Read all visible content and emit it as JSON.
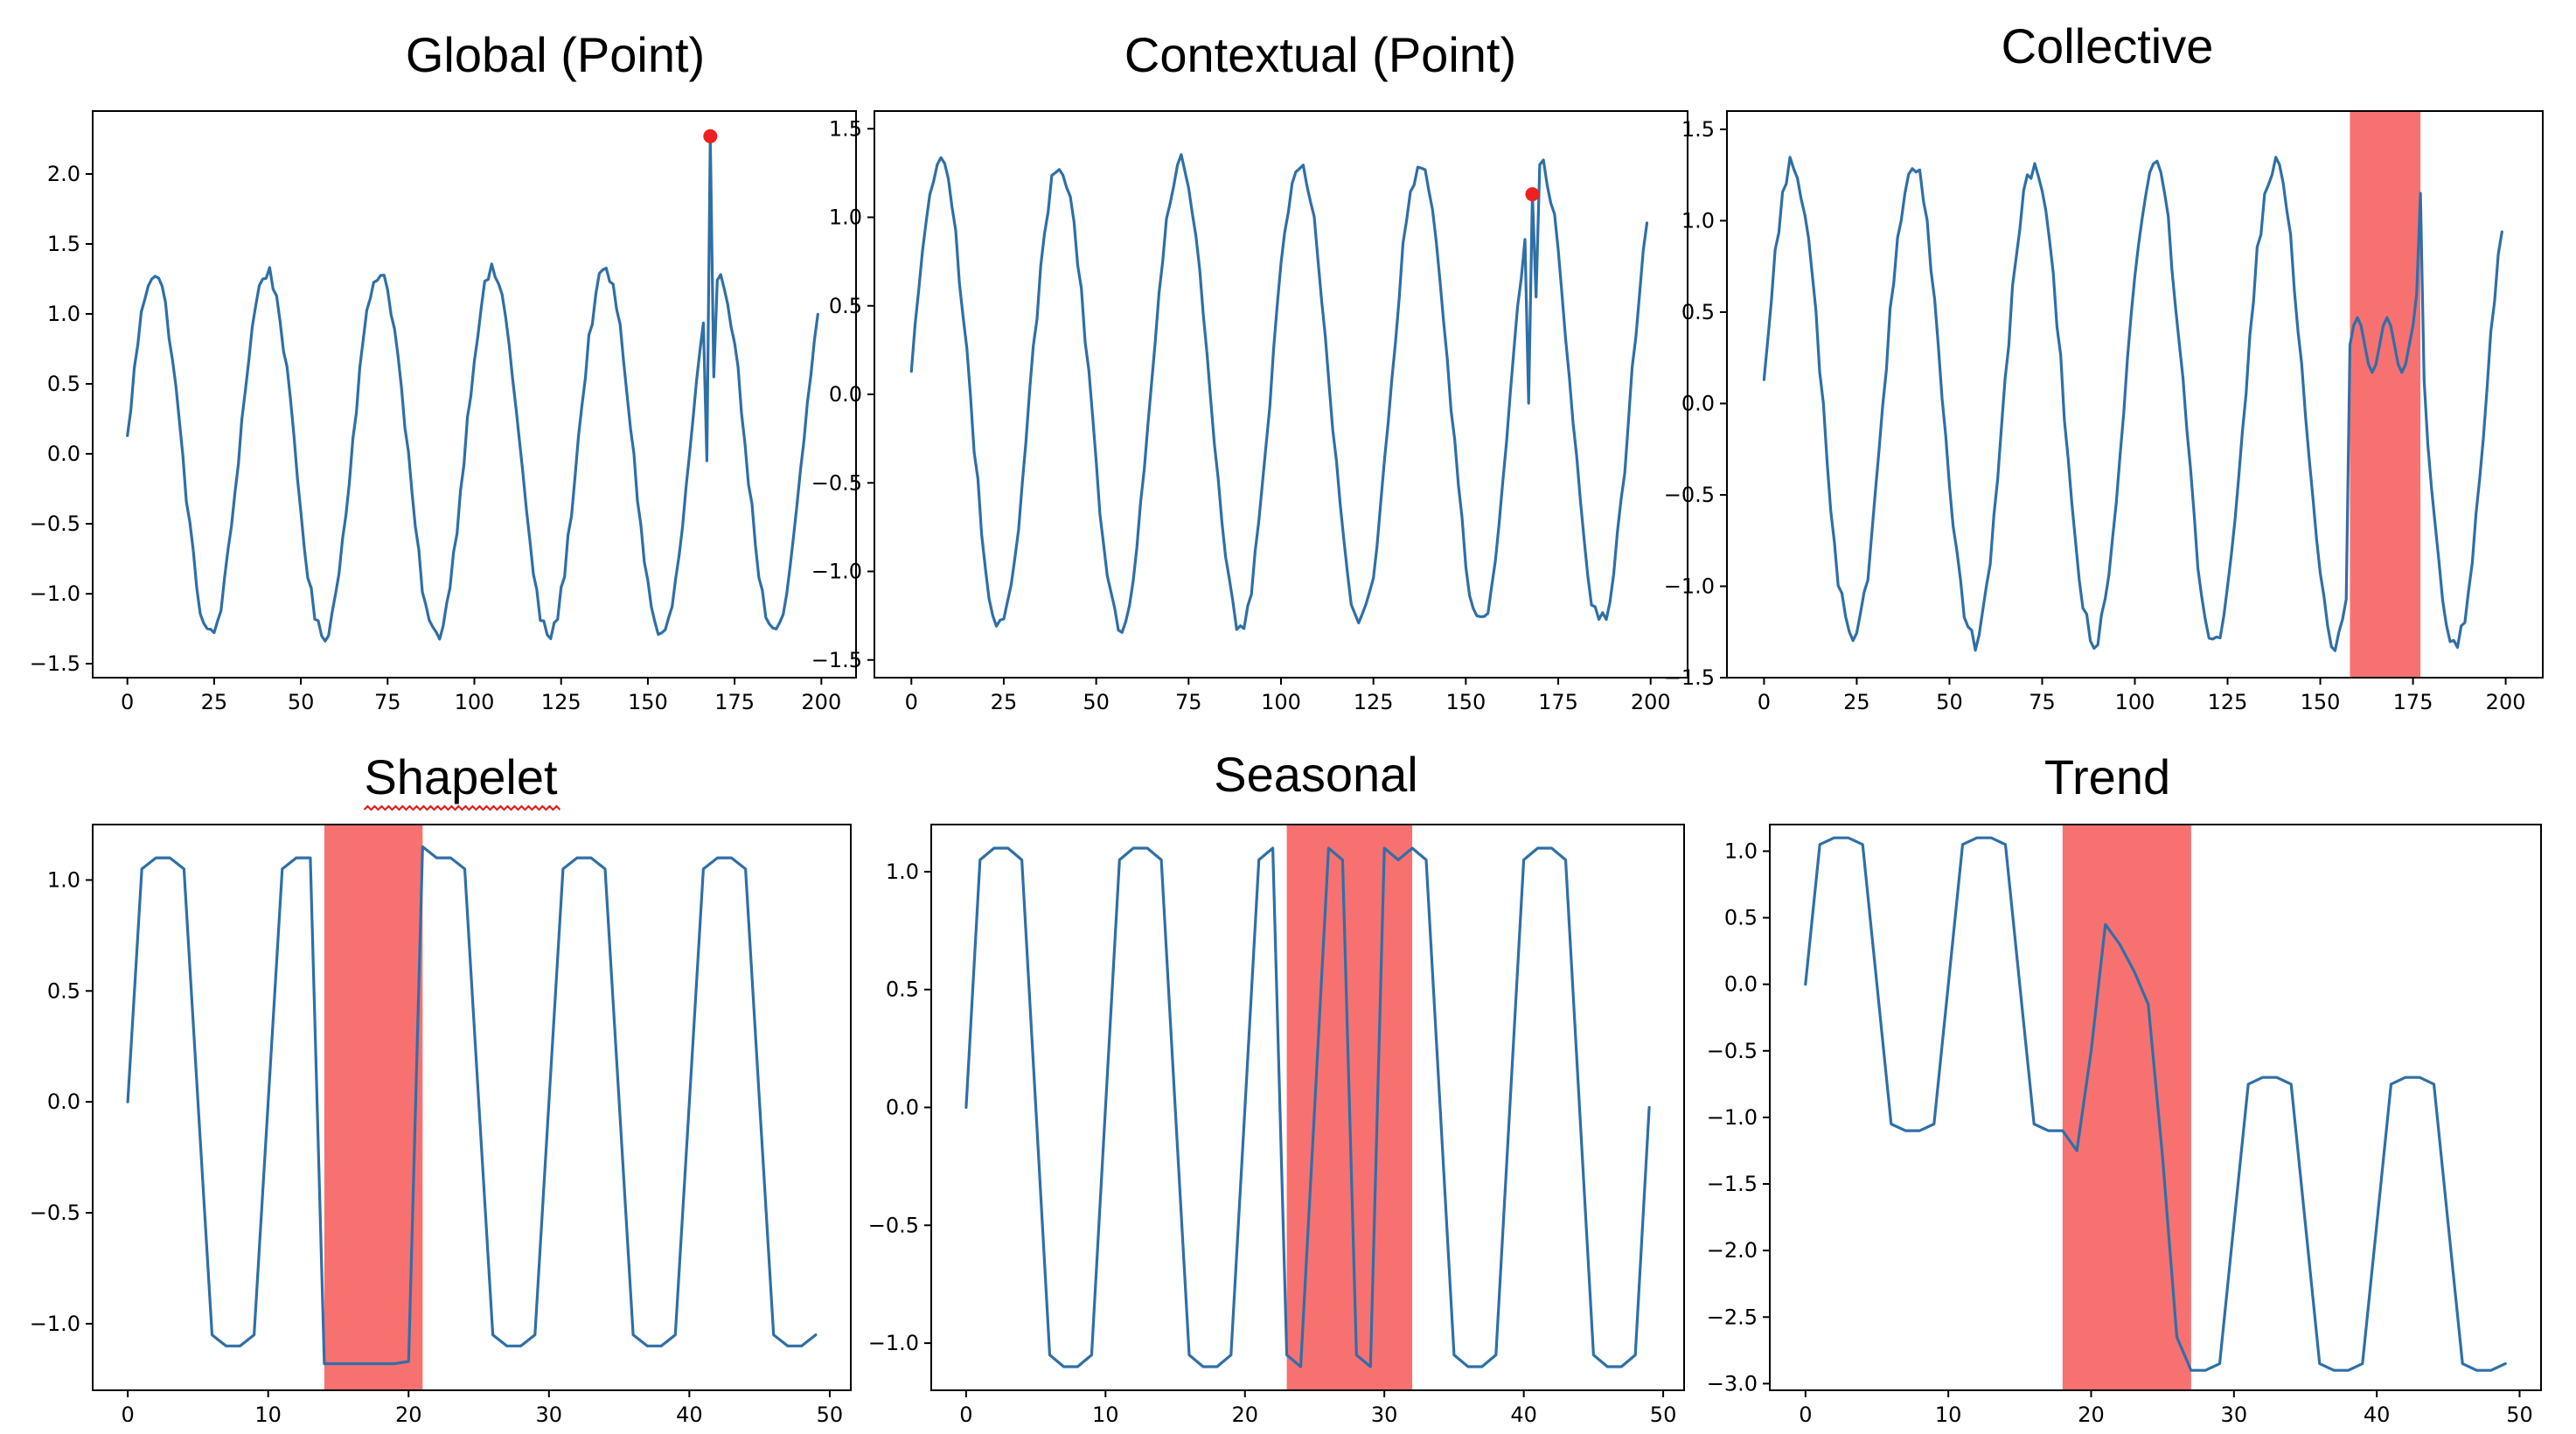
{
  "colors": {
    "line": "#2f6fa7",
    "anomaly_marker": "#ee2020",
    "anomaly_region": "#f87171"
  },
  "chart_data": [
    {
      "type": "line",
      "title": "Global (Point)",
      "xlim": [
        -10,
        210
      ],
      "ylim": [
        -1.6,
        2.45
      ],
      "xticks": [
        0,
        25,
        50,
        75,
        100,
        125,
        150,
        175,
        200
      ],
      "xtick_labels": [
        "0",
        "25",
        "50",
        "75",
        "100",
        "125",
        "150",
        "175",
        "200"
      ],
      "yticks": [
        -1.5,
        -1.0,
        -0.5,
        0.0,
        0.5,
        1.0,
        1.5,
        2.0
      ],
      "ytick_labels": [
        "−1.5",
        "−1.0",
        "−0.5",
        "0.0",
        "0.5",
        "1.0",
        "1.5",
        "2.0"
      ],
      "series": [
        {
          "generator": "sine_noisy",
          "n": 200,
          "period": 32.5,
          "amp": 1.3,
          "phase_offset": 0.08
        }
      ],
      "anomaly_points": [
        {
          "x": 168,
          "y": 2.27
        }
      ],
      "line_overrides": [
        {
          "x": 167,
          "y": -0.05
        },
        {
          "x": 168,
          "y": 2.27
        },
        {
          "x": 169,
          "y": 0.55
        }
      ],
      "anomaly_regions": []
    },
    {
      "type": "line",
      "title": "Contextual (Point)",
      "xlim": [
        -10,
        210
      ],
      "ylim": [
        -1.6,
        1.6
      ],
      "xticks": [
        0,
        25,
        50,
        75,
        100,
        125,
        150,
        175,
        200
      ],
      "xtick_labels": [
        "0",
        "25",
        "50",
        "75",
        "100",
        "125",
        "150",
        "175",
        "200"
      ],
      "yticks": [
        -1.5,
        -1.0,
        -0.5,
        0.0,
        0.5,
        1.0,
        1.5
      ],
      "ytick_labels": [
        "−1.5",
        "−1.0",
        "−0.5",
        "0.0",
        "0.5",
        "1.0",
        "1.5"
      ],
      "series": [
        {
          "generator": "sine_noisy",
          "n": 200,
          "period": 32.5,
          "amp": 1.3,
          "phase_offset": 0.08
        }
      ],
      "anomaly_points": [
        {
          "x": 168,
          "y": 1.13
        }
      ],
      "line_overrides": [
        {
          "x": 167,
          "y": -0.05
        },
        {
          "x": 168,
          "y": 1.13
        },
        {
          "x": 169,
          "y": 0.55
        }
      ],
      "anomaly_regions": []
    },
    {
      "type": "line",
      "title": "Collective",
      "xlim": [
        -10,
        210
      ],
      "ylim": [
        -1.5,
        1.6
      ],
      "xticks": [
        0,
        25,
        50,
        75,
        100,
        125,
        150,
        175,
        200
      ],
      "xtick_labels": [
        "0",
        "25",
        "50",
        "75",
        "100",
        "125",
        "150",
        "175",
        "200"
      ],
      "yticks": [
        -1.5,
        -1.0,
        -0.5,
        0.0,
        0.5,
        1.0,
        1.5
      ],
      "ytick_labels": [
        "−1.5",
        "−1.0",
        "−0.5",
        "0.0",
        "0.5",
        "1.0",
        "1.5"
      ],
      "series": [
        {
          "generator": "sine_noisy",
          "n": 200,
          "period": 32.5,
          "amp": 1.3,
          "phase_offset": 0.08,
          "replace_range": [
            158,
            176
          ],
          "replace_amp": 0.15,
          "replace_mid": 0.32,
          "replace_period": 8
        }
      ],
      "anomaly_points": [],
      "line_overrides": [
        {
          "x": 176,
          "y": 0.6
        },
        {
          "x": 177,
          "y": 1.15
        }
      ],
      "anomaly_regions": [
        [
          158,
          177
        ]
      ]
    },
    {
      "type": "line",
      "title": "Shapelet",
      "xlim": [
        -2.5,
        51.5
      ],
      "ylim": [
        -1.3,
        1.25
      ],
      "xticks": [
        0,
        10,
        20,
        30,
        40,
        50
      ],
      "xtick_labels": [
        "0",
        "10",
        "20",
        "30",
        "40",
        "50"
      ],
      "yticks": [
        -1.0,
        -0.5,
        0.0,
        0.5,
        1.0
      ],
      "ytick_labels": [
        "−1.0",
        "−0.5",
        "0.0",
        "0.5",
        "1.0"
      ],
      "series": [
        {
          "x": [
            0,
            1,
            2,
            3,
            4,
            5,
            6,
            7,
            8,
            9,
            10,
            11,
            12,
            13,
            14,
            15,
            16,
            17,
            18,
            19,
            20,
            21,
            22,
            23,
            24,
            25,
            26,
            27,
            28,
            29,
            30,
            31,
            32,
            33,
            34,
            35,
            36,
            37,
            38,
            39,
            40,
            41,
            42,
            43,
            44,
            45,
            46,
            47,
            48,
            49
          ],
          "y": [
            0,
            1.05,
            1.1,
            1.1,
            1.05,
            0,
            -1.05,
            -1.1,
            -1.1,
            -1.05,
            0,
            1.05,
            1.1,
            1.1,
            -1.18,
            -1.18,
            -1.18,
            -1.18,
            -1.18,
            -1.18,
            -1.17,
            1.15,
            1.1,
            1.1,
            1.05,
            0,
            -1.05,
            -1.1,
            -1.1,
            -1.05,
            0,
            1.05,
            1.1,
            1.1,
            1.05,
            0,
            -1.05,
            -1.1,
            -1.1,
            -1.05,
            0,
            1.05,
            1.1,
            1.1,
            1.05,
            0,
            -1.05,
            -1.1,
            -1.1,
            -1.05
          ]
        }
      ],
      "anomaly_points": [],
      "anomaly_regions": [
        [
          14,
          21
        ]
      ],
      "title_spell_mark": true
    },
    {
      "type": "line",
      "title": "Seasonal",
      "xlim": [
        -2.5,
        51.5
      ],
      "ylim": [
        -1.2,
        1.2
      ],
      "xticks": [
        0,
        10,
        20,
        30,
        40,
        50
      ],
      "xtick_labels": [
        "0",
        "10",
        "20",
        "30",
        "40",
        "50"
      ],
      "yticks": [
        -1.0,
        -0.5,
        0.0,
        0.5,
        1.0
      ],
      "ytick_labels": [
        "−1.0",
        "−0.5",
        "0.0",
        "0.5",
        "1.0"
      ],
      "series": [
        {
          "x": [
            0,
            1,
            2,
            3,
            4,
            5,
            6,
            7,
            8,
            9,
            10,
            11,
            12,
            13,
            14,
            15,
            16,
            17,
            18,
            19,
            20,
            21,
            22,
            23,
            24,
            25,
            26,
            27,
            28,
            29,
            30,
            31,
            32,
            33,
            34,
            35,
            36,
            37,
            38,
            39,
            40,
            41,
            42,
            43,
            44,
            45,
            46,
            47,
            48,
            49
          ],
          "y": [
            0,
            1.05,
            1.1,
            1.1,
            1.05,
            0,
            -1.05,
            -1.1,
            -1.1,
            -1.05,
            0,
            1.05,
            1.1,
            1.1,
            1.05,
            0,
            -1.05,
            -1.1,
            -1.1,
            -1.05,
            0,
            1.05,
            1.1,
            -1.05,
            -1.1,
            0,
            1.1,
            1.05,
            -1.05,
            -1.1,
            1.1,
            1.05,
            1.1,
            1.05,
            0,
            -1.05,
            -1.1,
            -1.1,
            -1.05,
            0,
            1.05,
            1.1,
            1.1,
            1.05,
            0,
            -1.05,
            -1.1,
            -1.1,
            -1.05,
            0
          ]
        }
      ],
      "anomaly_points": [],
      "anomaly_regions": [
        [
          23,
          32
        ]
      ]
    },
    {
      "type": "line",
      "title": "Trend",
      "xlim": [
        -2.5,
        51.5
      ],
      "ylim": [
        -3.05,
        1.2
      ],
      "xticks": [
        0,
        10,
        20,
        30,
        40,
        50
      ],
      "xtick_labels": [
        "0",
        "10",
        "20",
        "30",
        "40",
        "50"
      ],
      "yticks": [
        -3.0,
        -2.5,
        -2.0,
        -1.5,
        -1.0,
        -0.5,
        0.0,
        0.5,
        1.0
      ],
      "ytick_labels": [
        "−3.0",
        "−2.5",
        "−2.0",
        "−1.5",
        "−1.0",
        "−0.5",
        "0.0",
        "0.5",
        "1.0"
      ],
      "series": [
        {
          "x": [
            0,
            1,
            2,
            3,
            4,
            5,
            6,
            7,
            8,
            9,
            10,
            11,
            12,
            13,
            14,
            15,
            16,
            17,
            18,
            19,
            20,
            21,
            22,
            23,
            24,
            25,
            26,
            27,
            28,
            29,
            30,
            31,
            32,
            33,
            34,
            35,
            36,
            37,
            38,
            39,
            40,
            41,
            42,
            43,
            44,
            45,
            46,
            47,
            48,
            49
          ],
          "y": [
            0,
            1.05,
            1.1,
            1.1,
            1.05,
            0,
            -1.05,
            -1.1,
            -1.1,
            -1.05,
            0,
            1.05,
            1.1,
            1.1,
            1.05,
            0,
            -1.05,
            -1.1,
            -1.1,
            -1.25,
            -0.5,
            0.45,
            0.3,
            0.1,
            -0.15,
            -1.3,
            -2.65,
            -2.9,
            -2.9,
            -2.85,
            -1.8,
            -0.75,
            -0.7,
            -0.7,
            -0.75,
            -1.8,
            -2.85,
            -2.9,
            -2.9,
            -2.85,
            -1.8,
            -0.75,
            -0.7,
            -0.7,
            -0.75,
            -1.8,
            -2.85,
            -2.9,
            -2.9,
            -2.85
          ]
        }
      ],
      "anomaly_points": [],
      "anomaly_regions": [
        [
          18,
          27
        ]
      ]
    }
  ]
}
